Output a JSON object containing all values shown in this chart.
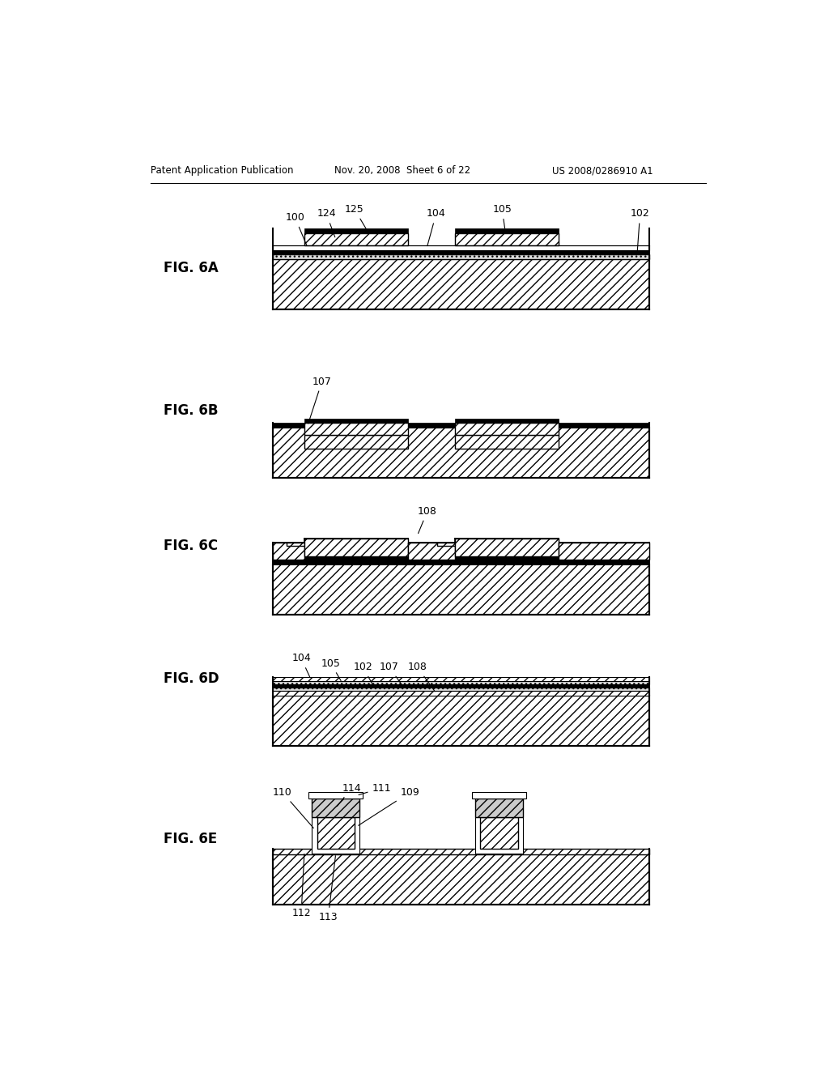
{
  "header_left": "Patent Application Publication",
  "header_mid": "Nov. 20, 2008  Sheet 6 of 22",
  "header_right": "US 2008/0286910 A1",
  "bg_color": "#ffffff"
}
